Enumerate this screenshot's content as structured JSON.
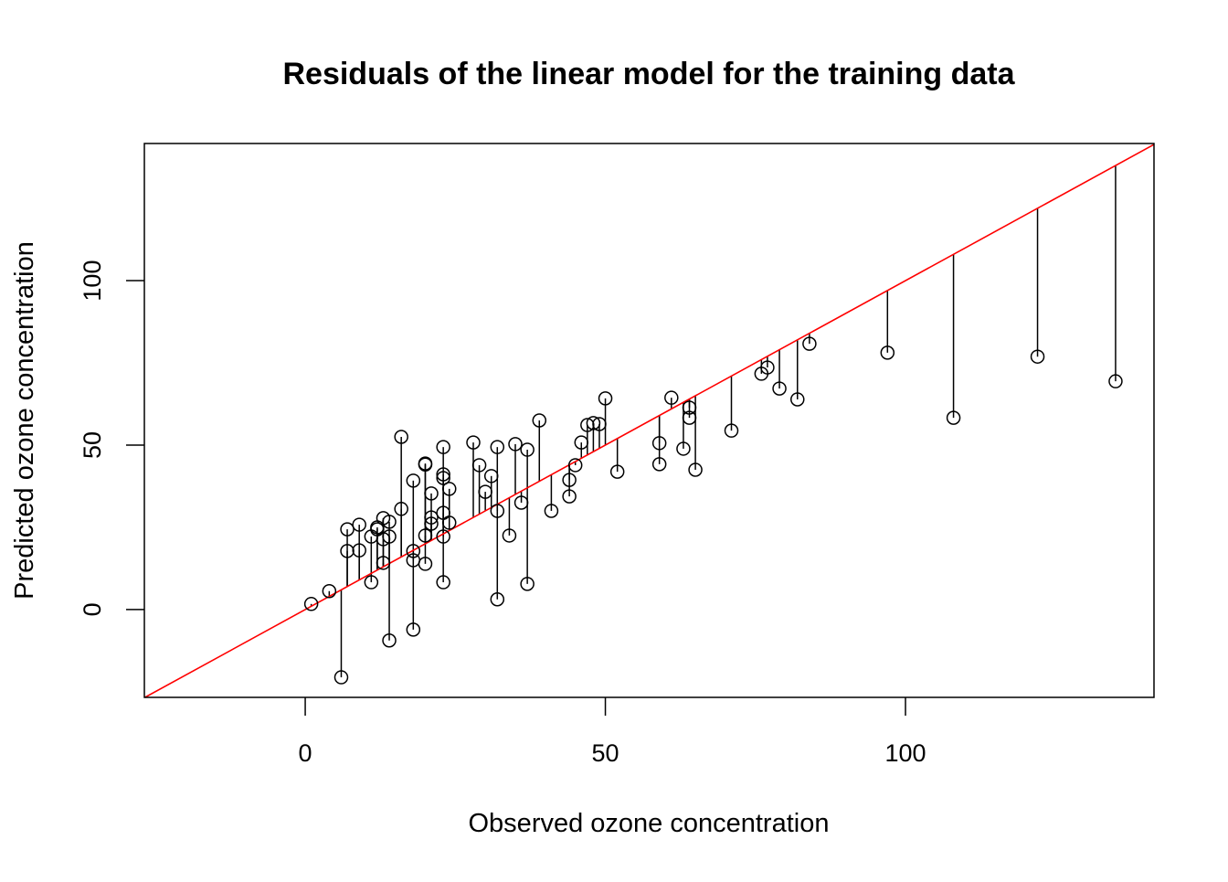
{
  "chart_data": {
    "type": "scatter",
    "title": "Residuals of the linear model for the training data",
    "xlabel": "Observed ozone concentration",
    "ylabel": "Predicted ozone concentration",
    "xlim": [
      -26.8,
      141.4
    ],
    "ylim": [
      -26.7,
      141.7
    ],
    "xticks": [
      0,
      50,
      100
    ],
    "yticks": [
      0,
      50,
      100
    ],
    "grid": false,
    "reference_line": {
      "type": "identity",
      "color": "#ff0000"
    },
    "point_color": "#000000",
    "marker": "open-circle",
    "residual_segments": true,
    "points": [
      [
        1,
        1.7
      ],
      [
        4,
        5.6
      ],
      [
        6,
        -20.6
      ],
      [
        7,
        24.4
      ],
      [
        7,
        17.8
      ],
      [
        9,
        25.8
      ],
      [
        9,
        18
      ],
      [
        11,
        22.2
      ],
      [
        11,
        8.3
      ],
      [
        12,
        25
      ],
      [
        12,
        24.4
      ],
      [
        13,
        27.8
      ],
      [
        13,
        21.4
      ],
      [
        13,
        14.2
      ],
      [
        14,
        26.7
      ],
      [
        14,
        22.2
      ],
      [
        14,
        -9.4
      ],
      [
        16,
        52.5
      ],
      [
        16,
        30.6
      ],
      [
        18,
        39.2
      ],
      [
        18,
        17.8
      ],
      [
        18,
        15
      ],
      [
        18,
        -6.1
      ],
      [
        20,
        44.4
      ],
      [
        20,
        44.1
      ],
      [
        20,
        22.5
      ],
      [
        20,
        13.9
      ],
      [
        21,
        35.3
      ],
      [
        21,
        28
      ],
      [
        21,
        26.1
      ],
      [
        23,
        49.4
      ],
      [
        23,
        41.1
      ],
      [
        23,
        40
      ],
      [
        23,
        29.4
      ],
      [
        23,
        22.2
      ],
      [
        23,
        8.3
      ],
      [
        24,
        36.7
      ],
      [
        24,
        26.4
      ],
      [
        28,
        50.8
      ],
      [
        29,
        43.9
      ],
      [
        30,
        35.8
      ],
      [
        31,
        40.6
      ],
      [
        32,
        49.4
      ],
      [
        32,
        30
      ],
      [
        32,
        3.1
      ],
      [
        34,
        22.5
      ],
      [
        35,
        50.3
      ],
      [
        36,
        32.5
      ],
      [
        37,
        48.6
      ],
      [
        37,
        7.8
      ],
      [
        39,
        57.5
      ],
      [
        41,
        30
      ],
      [
        44,
        39.4
      ],
      [
        44,
        34.4
      ],
      [
        45,
        43.9
      ],
      [
        46,
        50.8
      ],
      [
        47,
        56.1
      ],
      [
        48,
        56.7
      ],
      [
        49,
        56.4
      ],
      [
        50,
        64.2
      ],
      [
        52,
        41.9
      ],
      [
        59,
        50.6
      ],
      [
        59,
        44.2
      ],
      [
        61,
        64.4
      ],
      [
        63,
        48.9
      ],
      [
        64,
        61.4
      ],
      [
        64,
        58.3
      ],
      [
        65,
        42.5
      ],
      [
        71,
        54.4
      ],
      [
        76,
        71.7
      ],
      [
        77,
        73.6
      ],
      [
        79,
        67.2
      ],
      [
        82,
        63.9
      ],
      [
        84,
        80.8
      ],
      [
        97,
        78.1
      ],
      [
        108,
        58.3
      ],
      [
        122,
        76.9
      ],
      [
        135,
        69.4
      ]
    ]
  }
}
